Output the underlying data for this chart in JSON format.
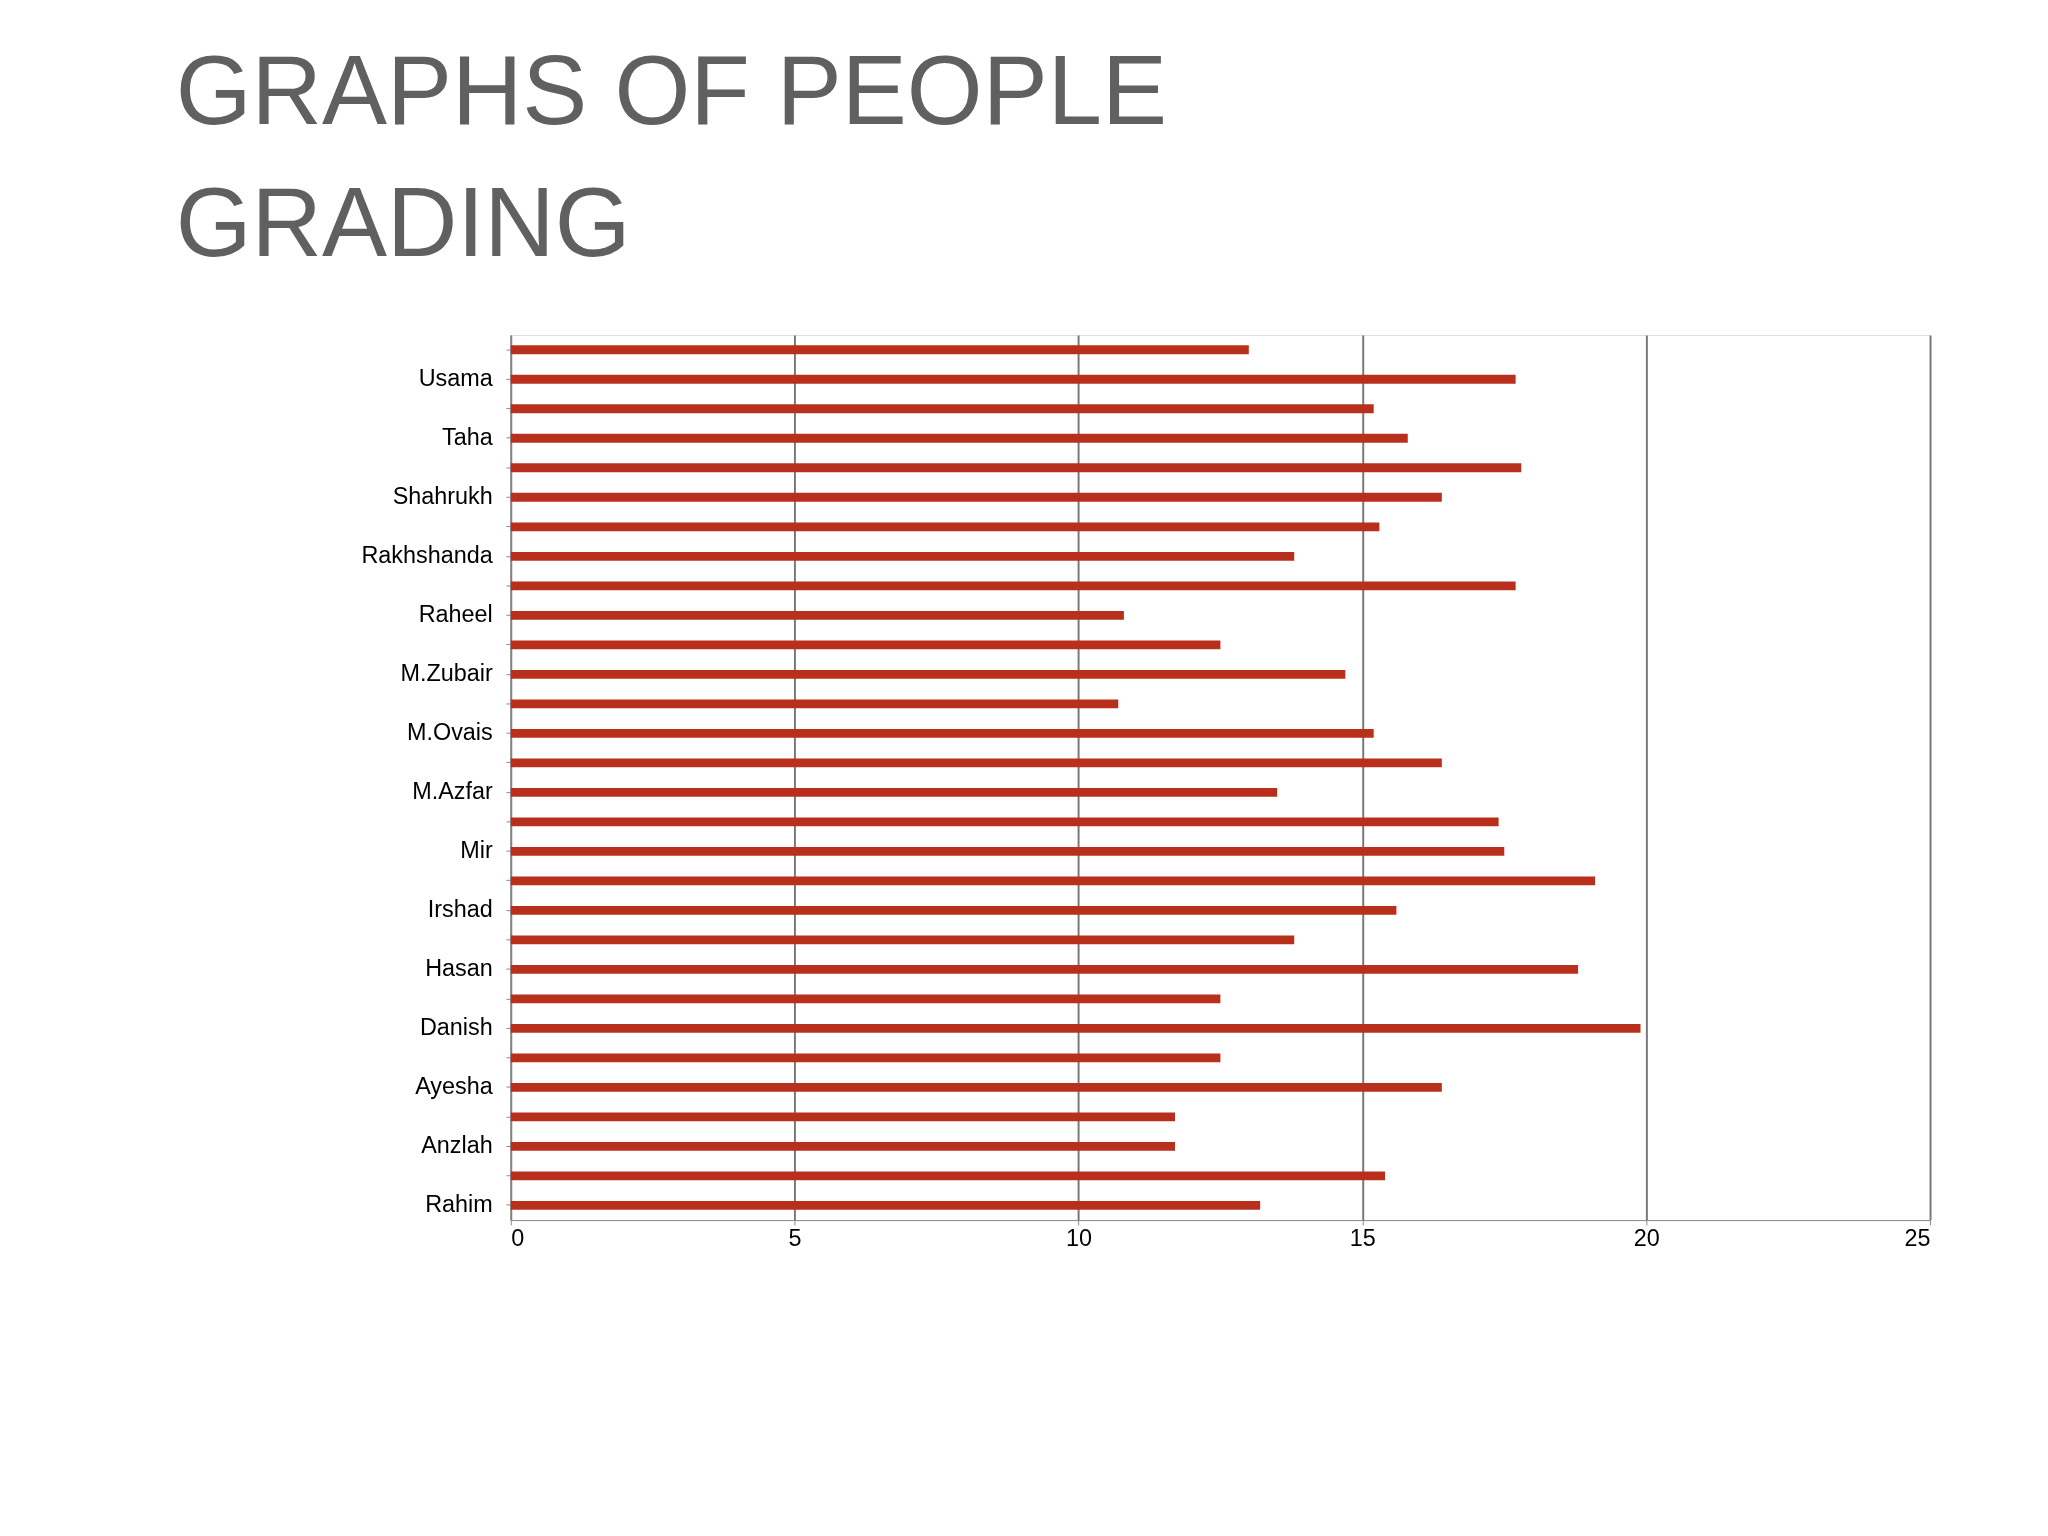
{
  "chart_data": {
    "type": "bar",
    "orientation": "horizontal",
    "title": "GRAPHS OF PEOPLE GRADING",
    "categories": [
      null,
      "Usama",
      null,
      "Taha",
      null,
      "Shahrukh",
      null,
      "Rakhshanda",
      null,
      "Raheel",
      null,
      "M.Zubair",
      null,
      "M.Ovais",
      null,
      "M.Azfar",
      null,
      "Mir",
      null,
      "Irshad",
      null,
      "Hasan",
      null,
      "Danish",
      null,
      "Ayesha",
      null,
      "Anzlah",
      null,
      "Rahim"
    ],
    "values": [
      13.0,
      17.7,
      15.2,
      15.8,
      17.8,
      16.4,
      15.3,
      13.8,
      17.7,
      10.8,
      12.5,
      14.7,
      10.7,
      15.2,
      16.4,
      13.5,
      17.4,
      17.5,
      19.1,
      15.6,
      13.8,
      18.8,
      12.5,
      19.9,
      12.5,
      16.4,
      11.7,
      11.7,
      15.4,
      13.2
    ],
    "color": "#b8301c",
    "xlim": [
      0,
      25
    ],
    "xticks": [
      0,
      5,
      10,
      15,
      20,
      25
    ],
    "grid": "x"
  }
}
